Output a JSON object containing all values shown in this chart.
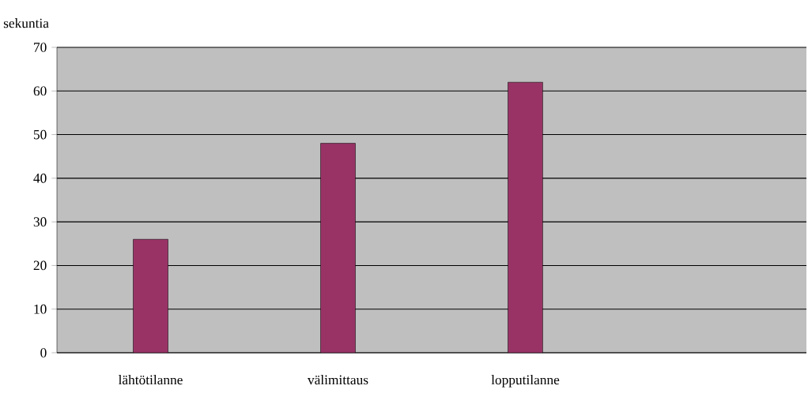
{
  "chart_data": {
    "type": "bar",
    "ylabel": "sekuntia",
    "categories": [
      "lähtötilanne",
      "välimittaus",
      "lopputilanne",
      null
    ],
    "values": [
      26,
      48,
      62,
      null
    ],
    "color": "#993366",
    "ylim": [
      0,
      70
    ],
    "yticks": [
      0,
      10,
      20,
      30,
      40,
      50,
      60,
      70
    ],
    "grid": "y"
  }
}
